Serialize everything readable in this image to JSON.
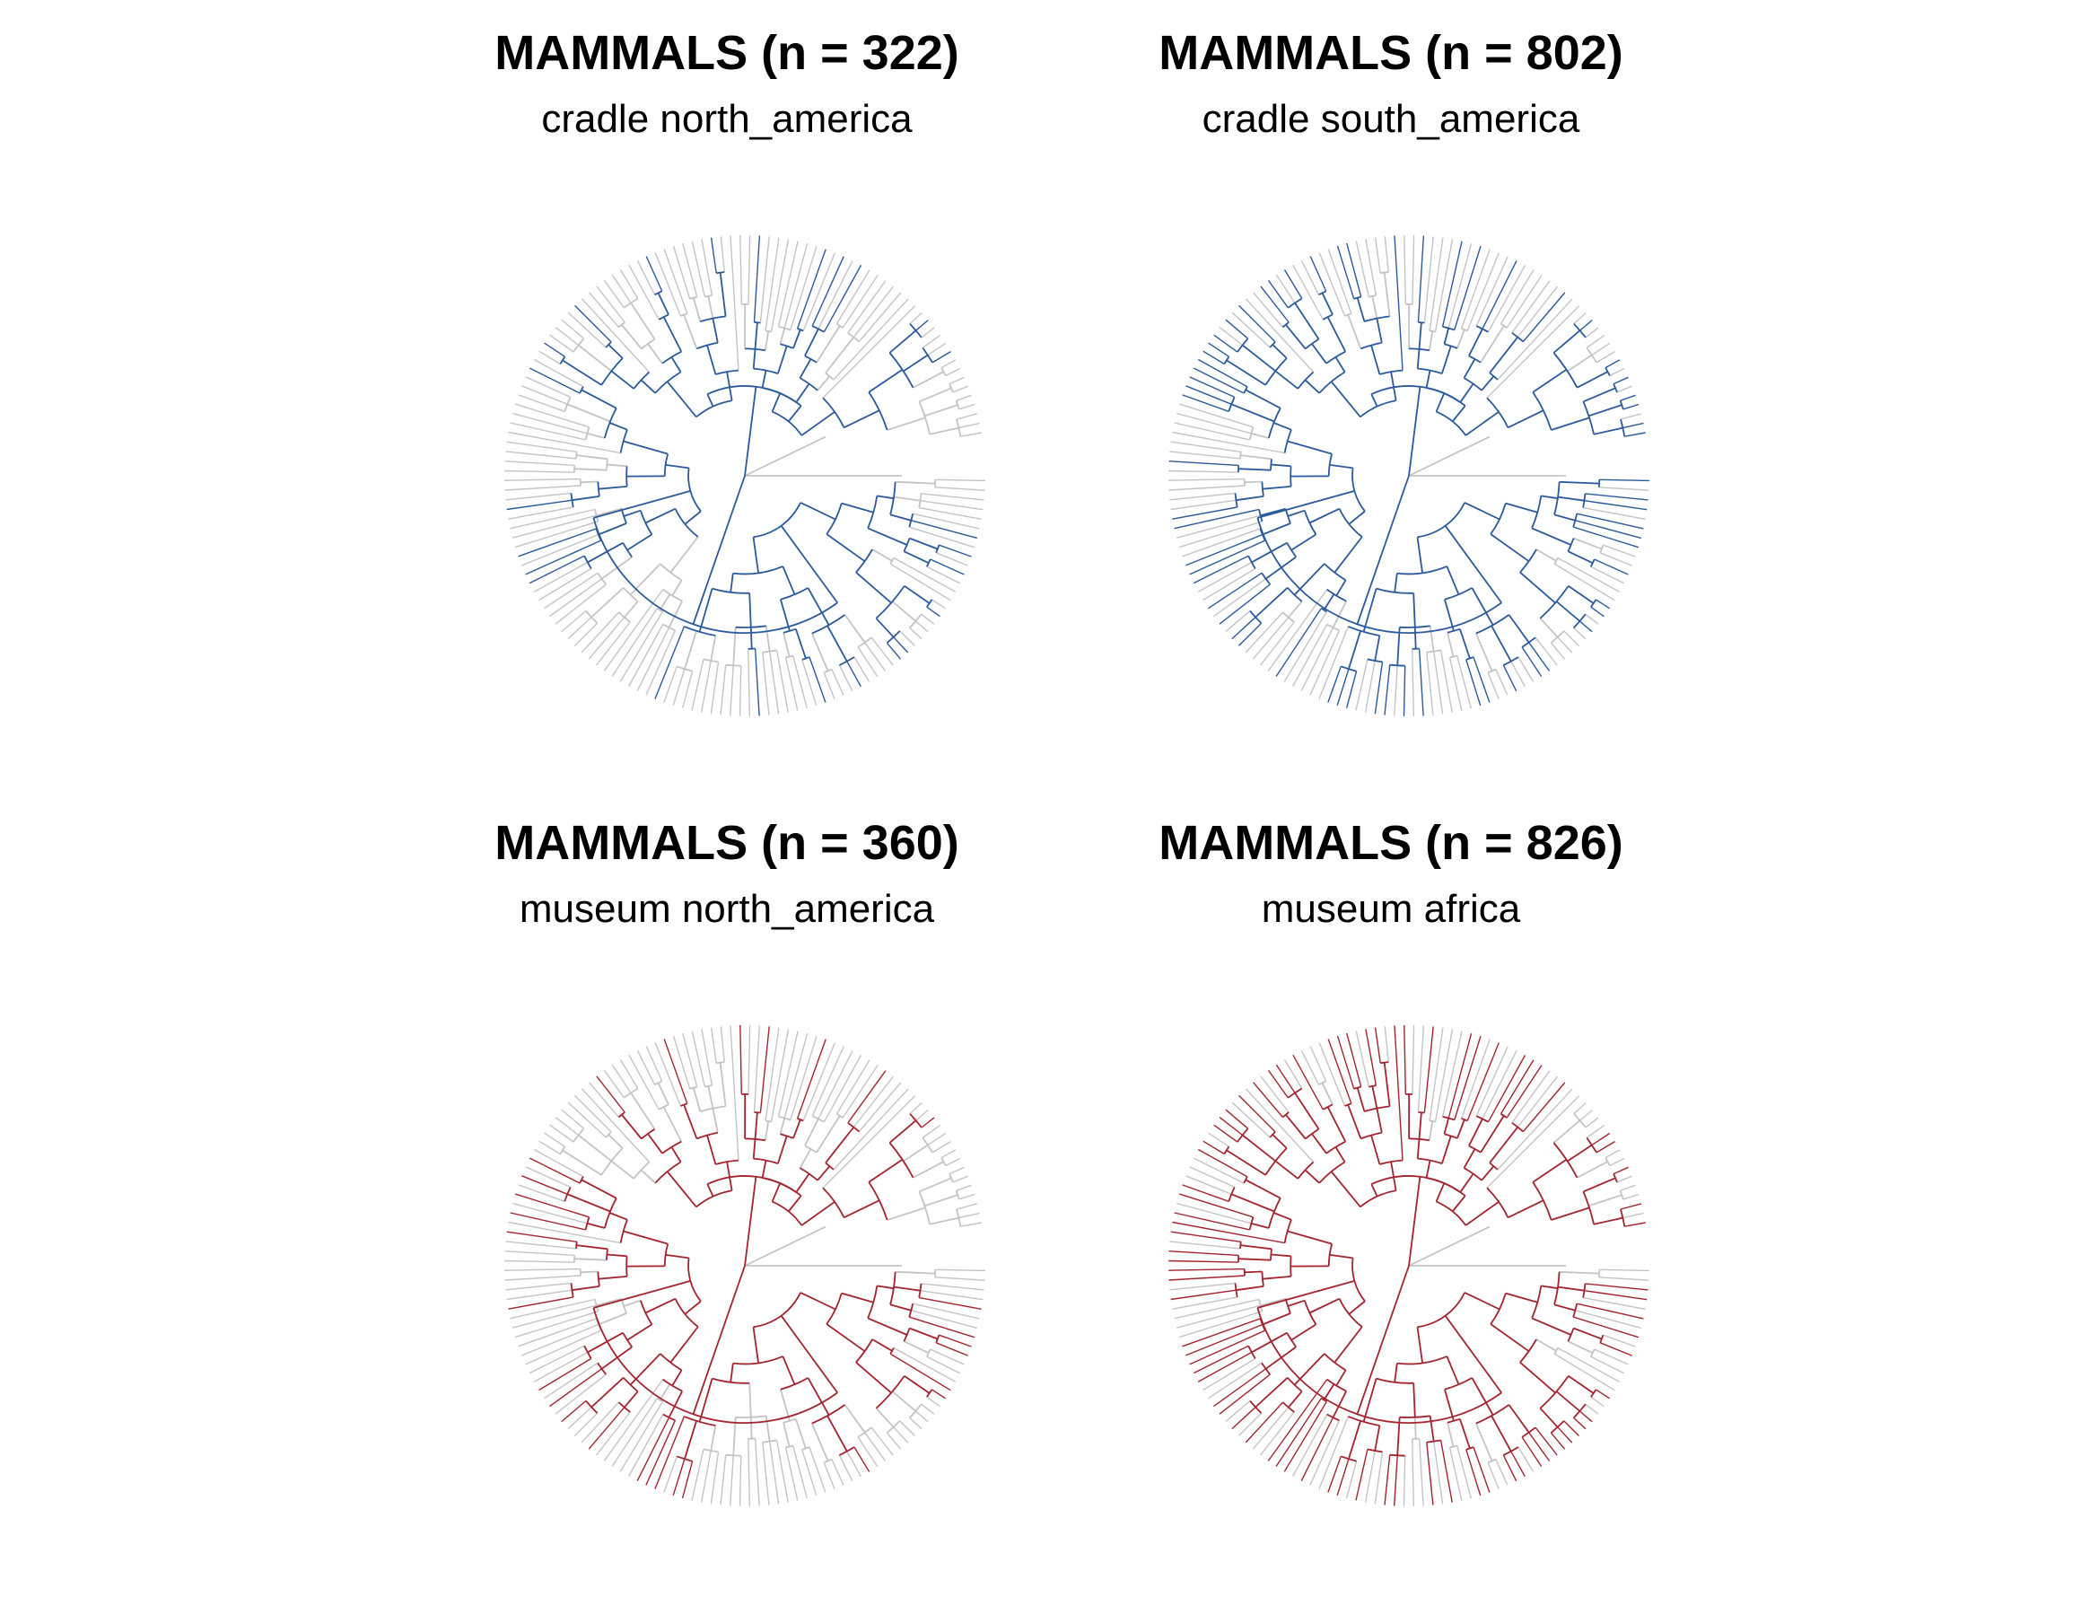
{
  "colors": {
    "background_branch": "#c4c4c4",
    "cradle": "#2b5a9c",
    "museum": "#a3242e"
  },
  "panels": [
    {
      "title": "MAMMALS (n = 322)",
      "subtitle": "cradle north_america",
      "kind": "cradle",
      "highlighted_tips": 322
    },
    {
      "title": "MAMMALS (n = 802)",
      "subtitle": "cradle south_america",
      "kind": "cradle",
      "highlighted_tips": 802
    },
    {
      "title": "MAMMALS (n = 360)",
      "subtitle": "museum north_america",
      "kind": "museum",
      "highlighted_tips": 360
    },
    {
      "title": "MAMMALS (n = 826)",
      "subtitle": "museum africa",
      "kind": "museum",
      "highlighted_tips": 826
    }
  ]
}
